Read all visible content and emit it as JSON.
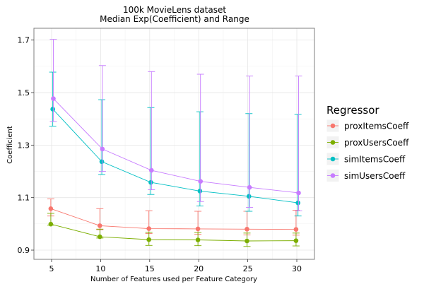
{
  "chart_data": {
    "type": "line",
    "title": [
      "100k MovieLens dataset",
      "Median Exp(Coefficient) and Range"
    ],
    "xlabel": "Number of Features used per Feature Category",
    "ylabel": "Coefficient",
    "xlim": [
      3.2,
      31.8
    ],
    "ylim": [
      0.865,
      1.745
    ],
    "x_ticks": [
      5,
      10,
      15,
      20,
      25,
      30
    ],
    "y_ticks": [
      0.9,
      1.1,
      1.3,
      1.5,
      1.7
    ],
    "x_tick_labels": [
      "5",
      "10",
      "15",
      "20",
      "25",
      "30"
    ],
    "y_tick_labels": [
      "0.9",
      "1.1",
      "1.3",
      "1.5",
      "1.7"
    ],
    "grid": true,
    "legend": {
      "title": "Regressor",
      "position": "right"
    },
    "series": [
      {
        "name": "proxItemsCoeff",
        "color": "#F8766D",
        "x": [
          5,
          10,
          15,
          20,
          25,
          30
        ],
        "values": [
          1.058,
          0.993,
          0.982,
          0.981,
          0.98,
          0.979
        ],
        "low": [
          1.03,
          0.978,
          0.963,
          0.96,
          0.958,
          0.957
        ],
        "high": [
          1.095,
          1.058,
          1.05,
          1.048,
          1.048,
          1.052
        ]
      },
      {
        "name": "proxUsersCoeff",
        "color": "#7CAE00",
        "x": [
          5,
          10,
          15,
          20,
          25,
          30
        ],
        "values": [
          0.999,
          0.951,
          0.94,
          0.939,
          0.935,
          0.936
        ],
        "low": [
          0.995,
          0.946,
          0.918,
          0.917,
          0.914,
          0.916
        ],
        "high": [
          1.04,
          0.98,
          0.968,
          0.967,
          0.965,
          0.965
        ]
      },
      {
        "name": "simItemsCoeff",
        "color": "#00BFC4",
        "x": [
          5,
          10,
          15,
          20,
          25,
          30
        ],
        "values": [
          1.437,
          1.237,
          1.158,
          1.125,
          1.105,
          1.08
        ],
        "low": [
          1.372,
          1.188,
          1.112,
          1.068,
          1.048,
          1.03
        ],
        "high": [
          1.578,
          1.473,
          1.443,
          1.427,
          1.42,
          1.417
        ]
      },
      {
        "name": "simUsersCoeff",
        "color": "#C77CFF",
        "x": [
          5,
          10,
          15,
          20,
          25,
          30
        ],
        "values": [
          1.477,
          1.285,
          1.204,
          1.162,
          1.139,
          1.118
        ],
        "low": [
          1.39,
          1.2,
          1.13,
          1.085,
          1.063,
          1.05
        ],
        "high": [
          1.703,
          1.603,
          1.58,
          1.57,
          1.563,
          1.563
        ]
      }
    ]
  }
}
